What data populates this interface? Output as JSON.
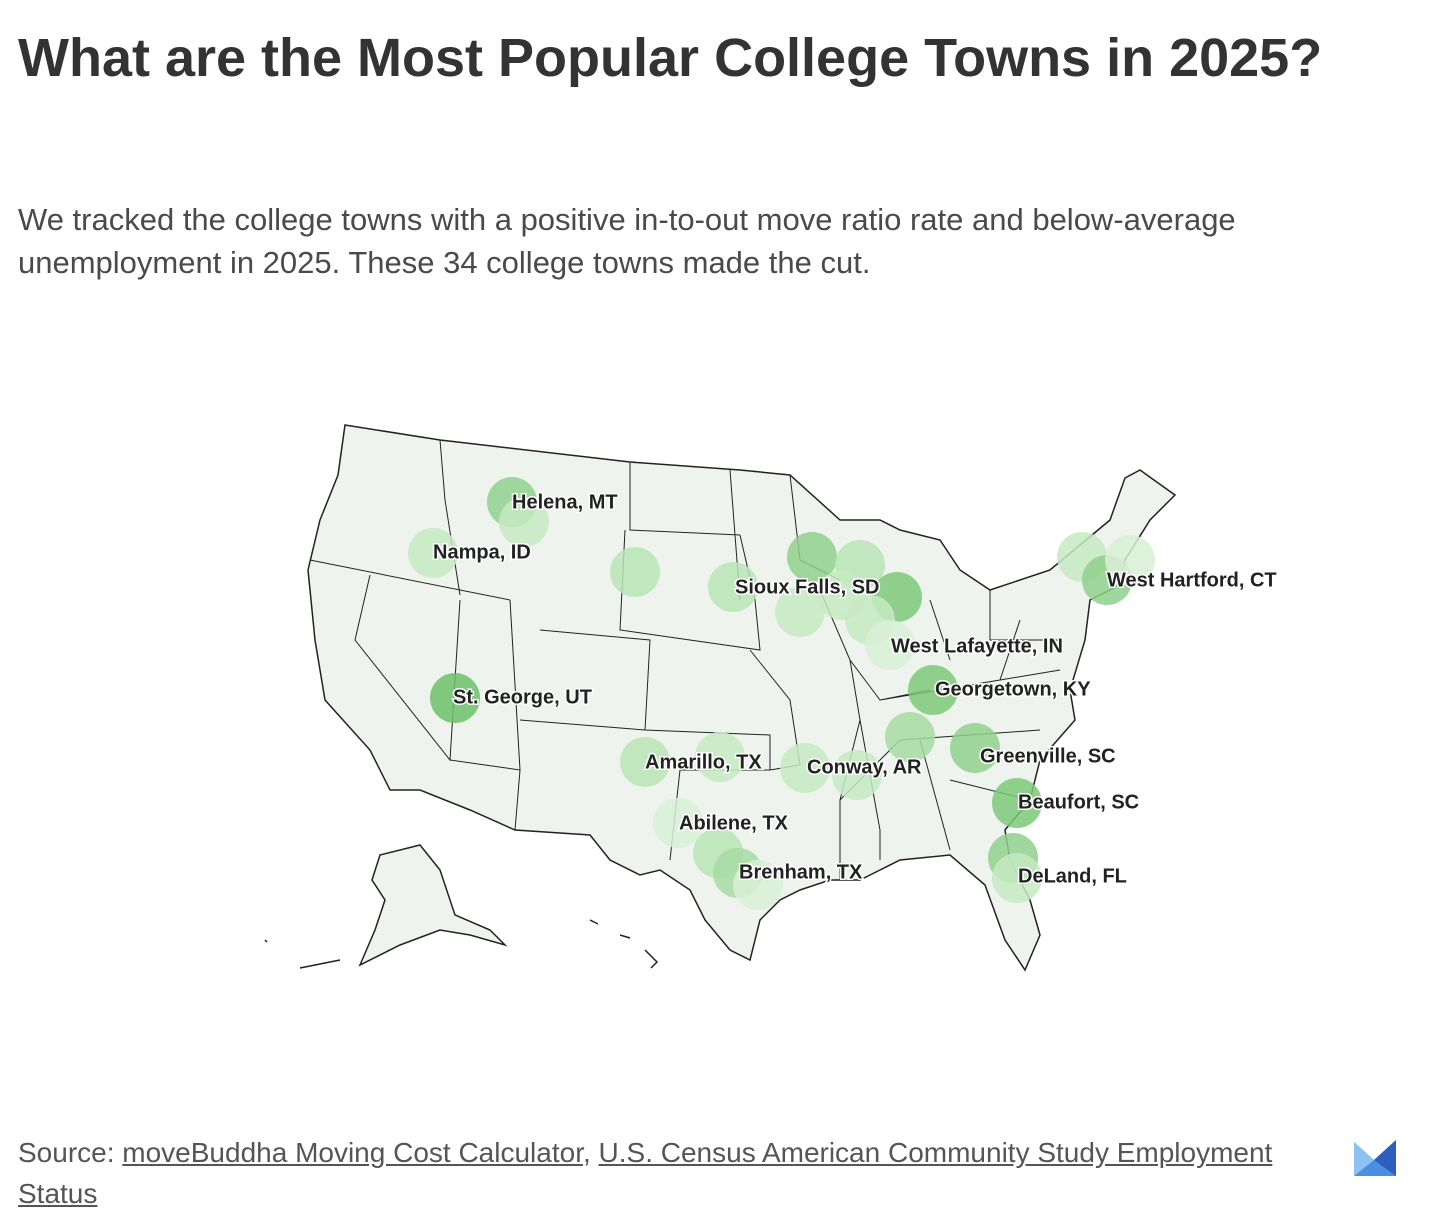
{
  "header": {
    "title": "What are the Most Popular College Towns in 2025?",
    "description": "We tracked the college towns with a positive in-to-out move ratio rate and below-average unemployment in 2025. These 34 college towns made the cut."
  },
  "map": {
    "labels": [
      "Helena, MT",
      "Nampa, ID",
      "Sioux Falls, SD",
      "West Hartford, CT",
      "West Lafayette, IN",
      "St. George, UT",
      "Georgetown, KY",
      "Amarillo, TX",
      "Conway, AR",
      "Greenville, SC",
      "Beaufort, SC",
      "Abilene, TX",
      "Brenham, TX",
      "DeLand, FL"
    ]
  },
  "footer": {
    "parts": [
      "Source:",
      "moveBuddha Moving Cost Calculator",
      ",",
      "U.S. Census American Community Study Employment Status"
    ]
  }
}
